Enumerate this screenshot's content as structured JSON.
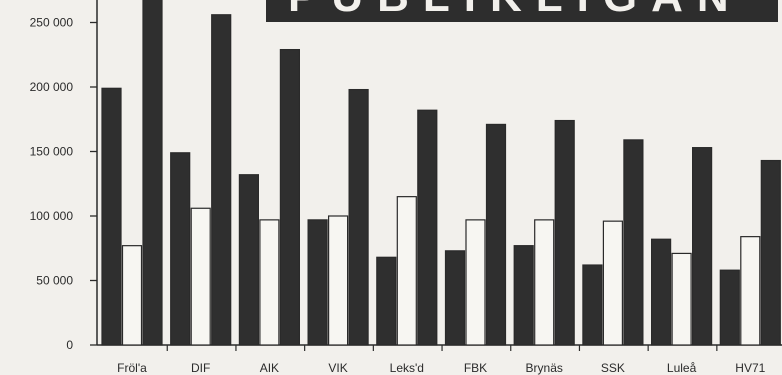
{
  "chart_data": {
    "type": "bar",
    "title": "PUBLIKLIGAN",
    "categories": [
      "Fröl'a",
      "DIF",
      "AIK",
      "VIK",
      "Leks'd",
      "FBK",
      "Brynäs",
      "SSK",
      "Luleå",
      "HV71"
    ],
    "series": [
      {
        "values": [
          199000,
          149000,
          132000,
          97000,
          68000,
          73000,
          77000,
          62000,
          82000,
          58000
        ]
      },
      {
        "values": [
          77000,
          106000,
          97000,
          100000,
          115000,
          97000,
          97000,
          96000,
          71000,
          84000
        ]
      },
      {
        "values": [
          275000,
          256000,
          229000,
          198000,
          182000,
          171000,
          174000,
          159000,
          153000,
          143000
        ]
      }
    ],
    "y_ticks": [
      0,
      50000,
      100000,
      150000,
      200000,
      250000
    ],
    "y_tick_labels": [
      "0",
      "50 000",
      "100 000",
      "150 000",
      "200 000",
      "250 000"
    ],
    "ylim": [
      0,
      275000
    ],
    "grid": false,
    "legend": "none",
    "colors": {
      "dark_bar": "#2f2f2f",
      "light_bar": "#f7f6f2",
      "axis": "#2b2b2b"
    }
  }
}
